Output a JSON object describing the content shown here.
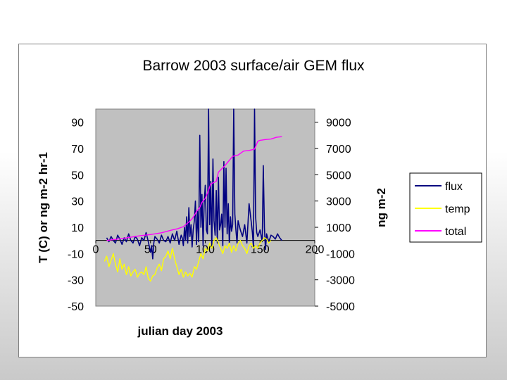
{
  "chart_data": {
    "type": "line",
    "title": "Barrow 2003 surface/air GEM flux",
    "xlabel": "julian day 2003",
    "ylabel": "T (C) or ng m-2 hr-1",
    "y2label": "ng m-2",
    "xlim": [
      0,
      200
    ],
    "ylim": [
      -50,
      100
    ],
    "y2lim": [
      -5000,
      10000
    ],
    "x_ticks": [
      "0",
      "50",
      "100",
      "150",
      "200"
    ],
    "y_ticks": [
      "90",
      "70",
      "50",
      "30",
      "10",
      "-10",
      "-30",
      "-50"
    ],
    "y2_ticks": [
      "9000",
      "7000",
      "5000",
      "3000",
      "1000",
      "-1000",
      "-3000",
      "-5000"
    ],
    "legend_position": "right",
    "grid": false,
    "series": [
      {
        "name": "flux",
        "axis": "left",
        "color": "#000080",
        "x": [
          10,
          12,
          14,
          16,
          18,
          20,
          22,
          24,
          26,
          28,
          30,
          32,
          34,
          36,
          38,
          40,
          42,
          44,
          46,
          48,
          50,
          51,
          52,
          53,
          54,
          56,
          58,
          60,
          62,
          64,
          66,
          68,
          70,
          72,
          74,
          76,
          78,
          79,
          80,
          81,
          82,
          83,
          84,
          85,
          86,
          87,
          88,
          89,
          90,
          91,
          92,
          93,
          94,
          95,
          96,
          97,
          98,
          99,
          100,
          101,
          102,
          103,
          104,
          105,
          106,
          107,
          108,
          109,
          110,
          111,
          112,
          113,
          114,
          115,
          116,
          117,
          118,
          119,
          120,
          121,
          122,
          123,
          124,
          125,
          126,
          127,
          128,
          129,
          130,
          132,
          134,
          136,
          138,
          140,
          142,
          143,
          144,
          145,
          146,
          147,
          148,
          150,
          152,
          153,
          154,
          155,
          156,
          157,
          158,
          160,
          162,
          164,
          166,
          168,
          170
        ],
        "y": [
          2,
          -1,
          3,
          0,
          -2,
          4,
          1,
          -3,
          2,
          -1,
          5,
          0,
          -2,
          3,
          1,
          -4,
          2,
          0,
          6,
          -1,
          -9,
          -4,
          -14,
          -2,
          3,
          1,
          -2,
          4,
          0,
          -1,
          3,
          -2,
          5,
          0,
          7,
          -3,
          4,
          2,
          -4,
          10,
          0,
          18,
          -2,
          25,
          3,
          12,
          -5,
          8,
          15,
          30,
          -3,
          22,
          -1,
          80,
          10,
          35,
          -4,
          28,
          42,
          8,
          5,
          100,
          12,
          45,
          -6,
          62,
          15,
          4,
          38,
          -2,
          48,
          8,
          12,
          20,
          -4,
          60,
          10,
          55,
          5,
          28,
          -3,
          18,
          7,
          12,
          100,
          20,
          8,
          -2,
          15,
          8,
          3,
          12,
          -2,
          28,
          14,
          6,
          -5,
          100,
          18,
          6,
          3,
          8,
          -1,
          57,
          10,
          -7,
          5,
          2,
          -1,
          4,
          3,
          1,
          5,
          2,
          0
        ]
      },
      {
        "name": "temp",
        "axis": "left",
        "color": "#ffff00",
        "x": [
          8,
          10,
          12,
          14,
          16,
          18,
          20,
          22,
          24,
          26,
          28,
          30,
          32,
          34,
          36,
          38,
          40,
          42,
          44,
          46,
          48,
          50,
          52,
          54,
          56,
          58,
          60,
          62,
          64,
          66,
          68,
          70,
          72,
          74,
          76,
          78,
          80,
          82,
          84,
          86,
          88,
          90,
          92,
          94,
          96,
          98,
          100,
          102,
          104,
          106,
          108,
          110,
          112,
          114,
          116,
          118,
          120,
          122,
          124,
          126,
          128,
          130,
          132,
          134,
          136,
          138,
          140,
          142,
          144,
          146,
          148,
          150,
          152,
          154,
          156,
          158,
          160
        ],
        "y": [
          -16,
          -12,
          -20,
          -15,
          -10,
          -18,
          -24,
          -14,
          -22,
          -18,
          -26,
          -20,
          -27,
          -24,
          -22,
          -28,
          -25,
          -24,
          -26,
          -20,
          -29,
          -31,
          -27,
          -26,
          -21,
          -18,
          -23,
          -14,
          -12,
          -8,
          -14,
          -6,
          -14,
          -20,
          -26,
          -22,
          -28,
          -24,
          -27,
          -25,
          -28,
          -20,
          -22,
          -16,
          -10,
          -14,
          -6,
          -8,
          -2,
          -6,
          0,
          2,
          -2,
          -6,
          -10,
          -4,
          -6,
          -2,
          -9,
          -4,
          -8,
          -2,
          0,
          -4,
          -6,
          -10,
          -4,
          -2,
          -6,
          -4,
          -6,
          -2,
          0,
          2,
          1,
          -2,
          0
        ]
      },
      {
        "name": "total",
        "axis": "right",
        "color": "#ff00ff",
        "x": [
          10,
          20,
          30,
          40,
          50,
          60,
          70,
          75,
          80,
          85,
          88,
          90,
          92,
          95,
          97,
          100,
          102,
          105,
          110,
          112,
          118,
          120,
          125,
          130,
          135,
          140,
          145,
          148,
          150,
          155,
          160,
          165,
          170
        ],
        "y": [
          0,
          100,
          220,
          350,
          450,
          580,
          800,
          900,
          1050,
          1400,
          1650,
          1900,
          2200,
          2500,
          2900,
          3200,
          3600,
          4300,
          4500,
          5200,
          5700,
          5900,
          6400,
          6500,
          6800,
          6850,
          6950,
          7550,
          7620,
          7680,
          7720,
          7850,
          7900
        ]
      }
    ]
  }
}
